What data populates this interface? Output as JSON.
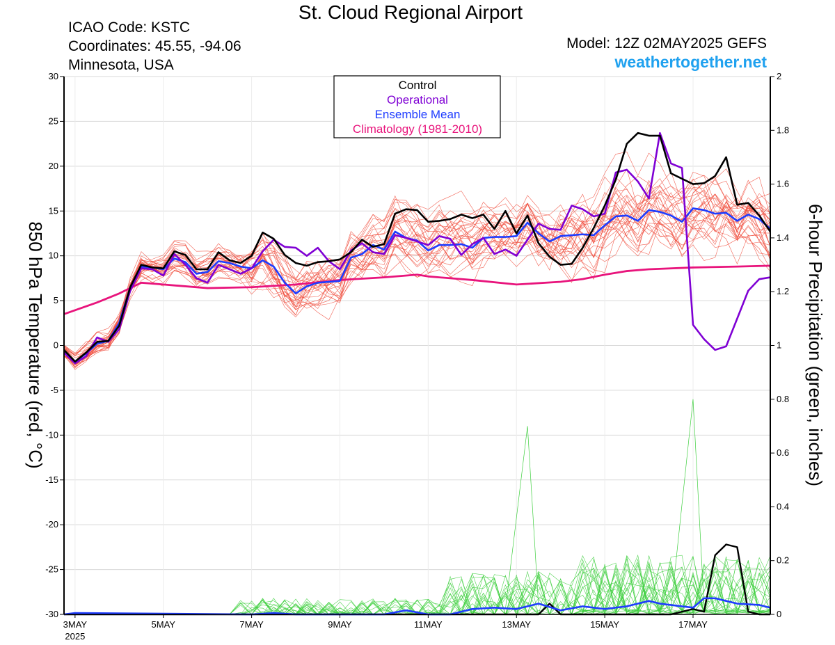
{
  "header": {
    "title": "St. Cloud Regional Airport",
    "icao": "ICAO Code: KSTC",
    "coords": "Coordinates: 45.55, -94.06",
    "location": "Minnesota, USA",
    "model": "Model: 12Z 02MAY2025 GEFS",
    "website": "weathertogether.net"
  },
  "colors": {
    "control": "#000000",
    "operational": "#7f00d4",
    "ensemble_mean": "#1e3cff",
    "climatology": "#e8147c",
    "members_temp": "#f04a3a",
    "members_precip": "#3ecf3e",
    "website": "#1fa1ef"
  },
  "chart_data": {
    "type": "line",
    "title": "St. Cloud Regional Airport",
    "ylabel": "850 hPa Temperature (red, °C)",
    "y2label": "6-hour Precipitation (green, inches)",
    "ylim": [
      -30,
      30
    ],
    "y2lim": [
      0,
      2
    ],
    "yticks": [
      30,
      25,
      20,
      15,
      10,
      5,
      0,
      -5,
      -10,
      -15,
      -20,
      -25,
      -30
    ],
    "y2ticks": [
      "2",
      "1.8",
      "1.6",
      "1.4",
      "1.2",
      "1",
      "0.8",
      "0.6",
      "0.4",
      "0.2",
      "0"
    ],
    "xlim": [
      2.75,
      18.75
    ],
    "x_unit": "day of May 2025",
    "xticks": [
      {
        "day": 3,
        "label": "3MAY",
        "sub": "2025"
      },
      {
        "day": 5,
        "label": "5MAY",
        "sub": ""
      },
      {
        "day": 7,
        "label": "7MAY",
        "sub": ""
      },
      {
        "day": 9,
        "label": "9MAY",
        "sub": ""
      },
      {
        "day": 11,
        "label": "11MAY",
        "sub": ""
      },
      {
        "day": 13,
        "label": "13MAY",
        "sub": ""
      },
      {
        "day": 15,
        "label": "15MAY",
        "sub": ""
      },
      {
        "day": 17,
        "label": "17MAY",
        "sub": ""
      }
    ],
    "legend": {
      "placement": "top-center",
      "entries": [
        "Control",
        "Operational",
        "Ensemble Mean",
        "Climatology (1981-2010)"
      ]
    },
    "series": [
      {
        "name": "Control",
        "axis": "temperature",
        "points": [
          [
            2.75,
            -0.5
          ],
          [
            3.0,
            -1.8
          ],
          [
            3.25,
            -0.8
          ],
          [
            3.5,
            0.4
          ],
          [
            3.75,
            0.5
          ],
          [
            4.0,
            2.2
          ],
          [
            4.25,
            6.5
          ],
          [
            4.5,
            9.0
          ],
          [
            4.75,
            8.7
          ],
          [
            5.0,
            8.6
          ],
          [
            5.25,
            10.5
          ],
          [
            5.5,
            10.1
          ],
          [
            5.75,
            8.5
          ],
          [
            6.0,
            8.5
          ],
          [
            6.25,
            10.4
          ],
          [
            6.5,
            9.5
          ],
          [
            6.75,
            9.2
          ],
          [
            7.0,
            10.0
          ],
          [
            7.25,
            12.6
          ],
          [
            7.5,
            11.9
          ],
          [
            7.75,
            10.1
          ],
          [
            8.0,
            9.2
          ],
          [
            8.25,
            8.9
          ],
          [
            8.5,
            9.3
          ],
          [
            8.75,
            9.4
          ],
          [
            9.0,
            9.6
          ],
          [
            9.25,
            10.4
          ],
          [
            9.5,
            11.8
          ],
          [
            9.75,
            11.0
          ],
          [
            10.0,
            11.3
          ],
          [
            10.25,
            14.7
          ],
          [
            10.5,
            15.2
          ],
          [
            10.75,
            15.1
          ],
          [
            11.0,
            13.8
          ],
          [
            11.25,
            13.9
          ],
          [
            11.5,
            14.1
          ],
          [
            11.75,
            14.6
          ],
          [
            12.0,
            14.2
          ],
          [
            12.25,
            14.6
          ],
          [
            12.5,
            13.0
          ],
          [
            12.75,
            15.0
          ],
          [
            13.0,
            12.5
          ],
          [
            13.25,
            14.5
          ],
          [
            13.5,
            11.4
          ],
          [
            13.75,
            9.9
          ],
          [
            14.0,
            9.0
          ],
          [
            14.25,
            9.1
          ],
          [
            14.5,
            10.9
          ],
          [
            14.75,
            13.1
          ],
          [
            15.0,
            15.6
          ],
          [
            15.25,
            18.5
          ],
          [
            15.5,
            22.5
          ],
          [
            15.75,
            23.7
          ],
          [
            16.0,
            23.4
          ],
          [
            16.25,
            23.4
          ],
          [
            16.5,
            19.2
          ],
          [
            16.75,
            18.6
          ],
          [
            17.0,
            18.0
          ],
          [
            17.25,
            18.1
          ],
          [
            17.5,
            18.9
          ],
          [
            17.75,
            21.0
          ],
          [
            18.0,
            15.7
          ],
          [
            18.25,
            15.9
          ],
          [
            18.5,
            14.5
          ],
          [
            18.75,
            12.7
          ]
        ]
      },
      {
        "name": "Operational",
        "axis": "temperature",
        "points": [
          [
            2.75,
            -0.8
          ],
          [
            3.0,
            -2.0
          ],
          [
            3.25,
            -1.2
          ],
          [
            3.5,
            0.9
          ],
          [
            3.75,
            0.4
          ],
          [
            4.0,
            1.8
          ],
          [
            4.25,
            6.1
          ],
          [
            4.5,
            8.6
          ],
          [
            4.75,
            8.5
          ],
          [
            5.0,
            7.8
          ],
          [
            5.25,
            10.2
          ],
          [
            5.5,
            9.0
          ],
          [
            5.75,
            7.5
          ],
          [
            6.0,
            7.0
          ],
          [
            6.25,
            9.0
          ],
          [
            6.5,
            8.5
          ],
          [
            6.75,
            8.0
          ],
          [
            7.0,
            8.6
          ],
          [
            7.25,
            10.5
          ],
          [
            7.5,
            11.8
          ],
          [
            7.75,
            11.0
          ],
          [
            8.0,
            10.9
          ],
          [
            8.25,
            10.0
          ],
          [
            8.5,
            10.9
          ],
          [
            8.75,
            9.4
          ],
          [
            9.0,
            8.5
          ],
          [
            9.25,
            10.6
          ],
          [
            9.5,
            11.4
          ],
          [
            9.75,
            10.4
          ],
          [
            10.0,
            10.2
          ],
          [
            10.25,
            12.3
          ],
          [
            10.5,
            12.0
          ],
          [
            10.75,
            11.6
          ],
          [
            11.0,
            11.2
          ],
          [
            11.25,
            12.2
          ],
          [
            11.5,
            11.9
          ],
          [
            11.75,
            10.1
          ],
          [
            12.0,
            11.3
          ],
          [
            12.25,
            12.0
          ],
          [
            12.5,
            10.2
          ],
          [
            12.75,
            10.7
          ],
          [
            13.0,
            10.0
          ],
          [
            13.25,
            11.8
          ],
          [
            13.5,
            13.6
          ],
          [
            13.75,
            13.0
          ],
          [
            14.0,
            12.9
          ],
          [
            14.25,
            15.6
          ],
          [
            14.5,
            15.2
          ],
          [
            14.75,
            14.4
          ],
          [
            15.0,
            14.7
          ],
          [
            15.25,
            19.3
          ],
          [
            15.5,
            19.6
          ],
          [
            15.75,
            18.3
          ],
          [
            16.0,
            16.4
          ],
          [
            16.25,
            23.7
          ],
          [
            16.5,
            20.3
          ],
          [
            16.75,
            19.8
          ],
          [
            17.0,
            2.3
          ],
          [
            17.25,
            0.7
          ],
          [
            17.5,
            -0.5
          ],
          [
            17.75,
            -0.1
          ],
          [
            18.0,
            3.0
          ],
          [
            18.25,
            6.1
          ],
          [
            18.5,
            7.4
          ],
          [
            18.75,
            7.6
          ]
        ]
      },
      {
        "name": "Ensemble Mean",
        "axis": "temperature",
        "points": [
          [
            2.75,
            -0.6
          ],
          [
            3.0,
            -1.8
          ],
          [
            3.25,
            -0.9
          ],
          [
            3.5,
            0.2
          ],
          [
            3.75,
            0.5
          ],
          [
            4.0,
            2.5
          ],
          [
            4.25,
            6.5
          ],
          [
            4.5,
            8.8
          ],
          [
            4.75,
            8.7
          ],
          [
            5.0,
            8.5
          ],
          [
            5.25,
            9.7
          ],
          [
            5.5,
            9.3
          ],
          [
            5.75,
            8.0
          ],
          [
            6.0,
            8.2
          ],
          [
            6.25,
            9.4
          ],
          [
            6.5,
            9.2
          ],
          [
            6.75,
            8.8
          ],
          [
            7.0,
            8.6
          ],
          [
            7.25,
            9.5
          ],
          [
            7.5,
            8.8
          ],
          [
            7.75,
            7.0
          ],
          [
            8.0,
            5.8
          ],
          [
            8.25,
            6.6
          ],
          [
            8.5,
            7.0
          ],
          [
            8.75,
            7.1
          ],
          [
            9.0,
            7.2
          ],
          [
            9.25,
            9.8
          ],
          [
            9.5,
            10.2
          ],
          [
            9.75,
            11.2
          ],
          [
            10.0,
            10.7
          ],
          [
            10.25,
            12.7
          ],
          [
            10.5,
            12.0
          ],
          [
            10.75,
            11.7
          ],
          [
            11.0,
            10.6
          ],
          [
            11.25,
            11.2
          ],
          [
            11.5,
            11.2
          ],
          [
            11.75,
            11.3
          ],
          [
            12.0,
            10.9
          ],
          [
            12.25,
            12.0
          ],
          [
            12.5,
            12.1
          ],
          [
            12.75,
            12.1
          ],
          [
            13.0,
            12.2
          ],
          [
            13.25,
            13.7
          ],
          [
            13.5,
            12.5
          ],
          [
            13.75,
            11.6
          ],
          [
            14.0,
            12.2
          ],
          [
            14.25,
            12.3
          ],
          [
            14.5,
            12.4
          ],
          [
            14.75,
            12.3
          ],
          [
            15.0,
            13.4
          ],
          [
            15.25,
            14.4
          ],
          [
            15.5,
            14.5
          ],
          [
            15.75,
            13.9
          ],
          [
            16.0,
            15.1
          ],
          [
            16.25,
            14.9
          ],
          [
            16.5,
            14.5
          ],
          [
            16.75,
            13.8
          ],
          [
            17.0,
            15.3
          ],
          [
            17.25,
            15.1
          ],
          [
            17.5,
            14.7
          ],
          [
            17.75,
            14.8
          ],
          [
            18.0,
            13.9
          ],
          [
            18.25,
            14.6
          ],
          [
            18.5,
            14.1
          ],
          [
            18.75,
            13.0
          ]
        ]
      },
      {
        "name": "Climatology (1981-2010)",
        "axis": "temperature",
        "points": [
          [
            2.75,
            3.5
          ],
          [
            3.5,
            4.8
          ],
          [
            4.0,
            5.8
          ],
          [
            4.5,
            7.0
          ],
          [
            5.0,
            6.8
          ],
          [
            6.0,
            6.4
          ],
          [
            7.0,
            6.5
          ],
          [
            8.0,
            6.8
          ],
          [
            9.0,
            7.3
          ],
          [
            10.0,
            7.6
          ],
          [
            10.75,
            7.9
          ],
          [
            11.0,
            7.7
          ],
          [
            12.0,
            7.3
          ],
          [
            13.0,
            6.8
          ],
          [
            14.0,
            7.1
          ],
          [
            14.5,
            7.4
          ],
          [
            15.0,
            7.9
          ],
          [
            15.5,
            8.3
          ],
          [
            16.0,
            8.5
          ],
          [
            17.0,
            8.7
          ],
          [
            18.0,
            8.8
          ],
          [
            18.75,
            8.9
          ]
        ]
      },
      {
        "name": "Control precipitation",
        "axis": "precipitation",
        "points": [
          [
            2.75,
            0
          ],
          [
            13.5,
            0
          ],
          [
            13.75,
            0.04
          ],
          [
            14.0,
            0
          ],
          [
            16.5,
            0
          ],
          [
            16.75,
            0.01
          ],
          [
            17.0,
            0.02
          ],
          [
            17.25,
            0.01
          ],
          [
            17.5,
            0.22
          ],
          [
            17.75,
            0.26
          ],
          [
            18.0,
            0.25
          ],
          [
            18.25,
            0.01
          ],
          [
            18.5,
            0
          ],
          [
            18.75,
            0
          ]
        ]
      },
      {
        "name": "Ensemble Mean precipitation",
        "axis": "precipitation",
        "points": [
          [
            2.75,
            0
          ],
          [
            3.0,
            0.005
          ],
          [
            7.0,
            0
          ],
          [
            7.5,
            0.005
          ],
          [
            8.0,
            0
          ],
          [
            10.0,
            0
          ],
          [
            10.5,
            0.015
          ],
          [
            11.0,
            0
          ],
          [
            11.5,
            0
          ],
          [
            12.0,
            0.02
          ],
          [
            12.5,
            0.025
          ],
          [
            13.0,
            0.02
          ],
          [
            13.25,
            0.03
          ],
          [
            13.5,
            0.04
          ],
          [
            14.0,
            0.015
          ],
          [
            14.5,
            0.03
          ],
          [
            15.0,
            0.02
          ],
          [
            15.5,
            0.03
          ],
          [
            16.0,
            0.05
          ],
          [
            16.25,
            0.04
          ],
          [
            16.75,
            0.03
          ],
          [
            17.0,
            0.025
          ],
          [
            17.25,
            0.06
          ],
          [
            17.5,
            0.06
          ],
          [
            17.75,
            0.05
          ],
          [
            18.0,
            0.04
          ],
          [
            18.5,
            0.035
          ],
          [
            18.75,
            0.025
          ]
        ]
      }
    ]
  }
}
